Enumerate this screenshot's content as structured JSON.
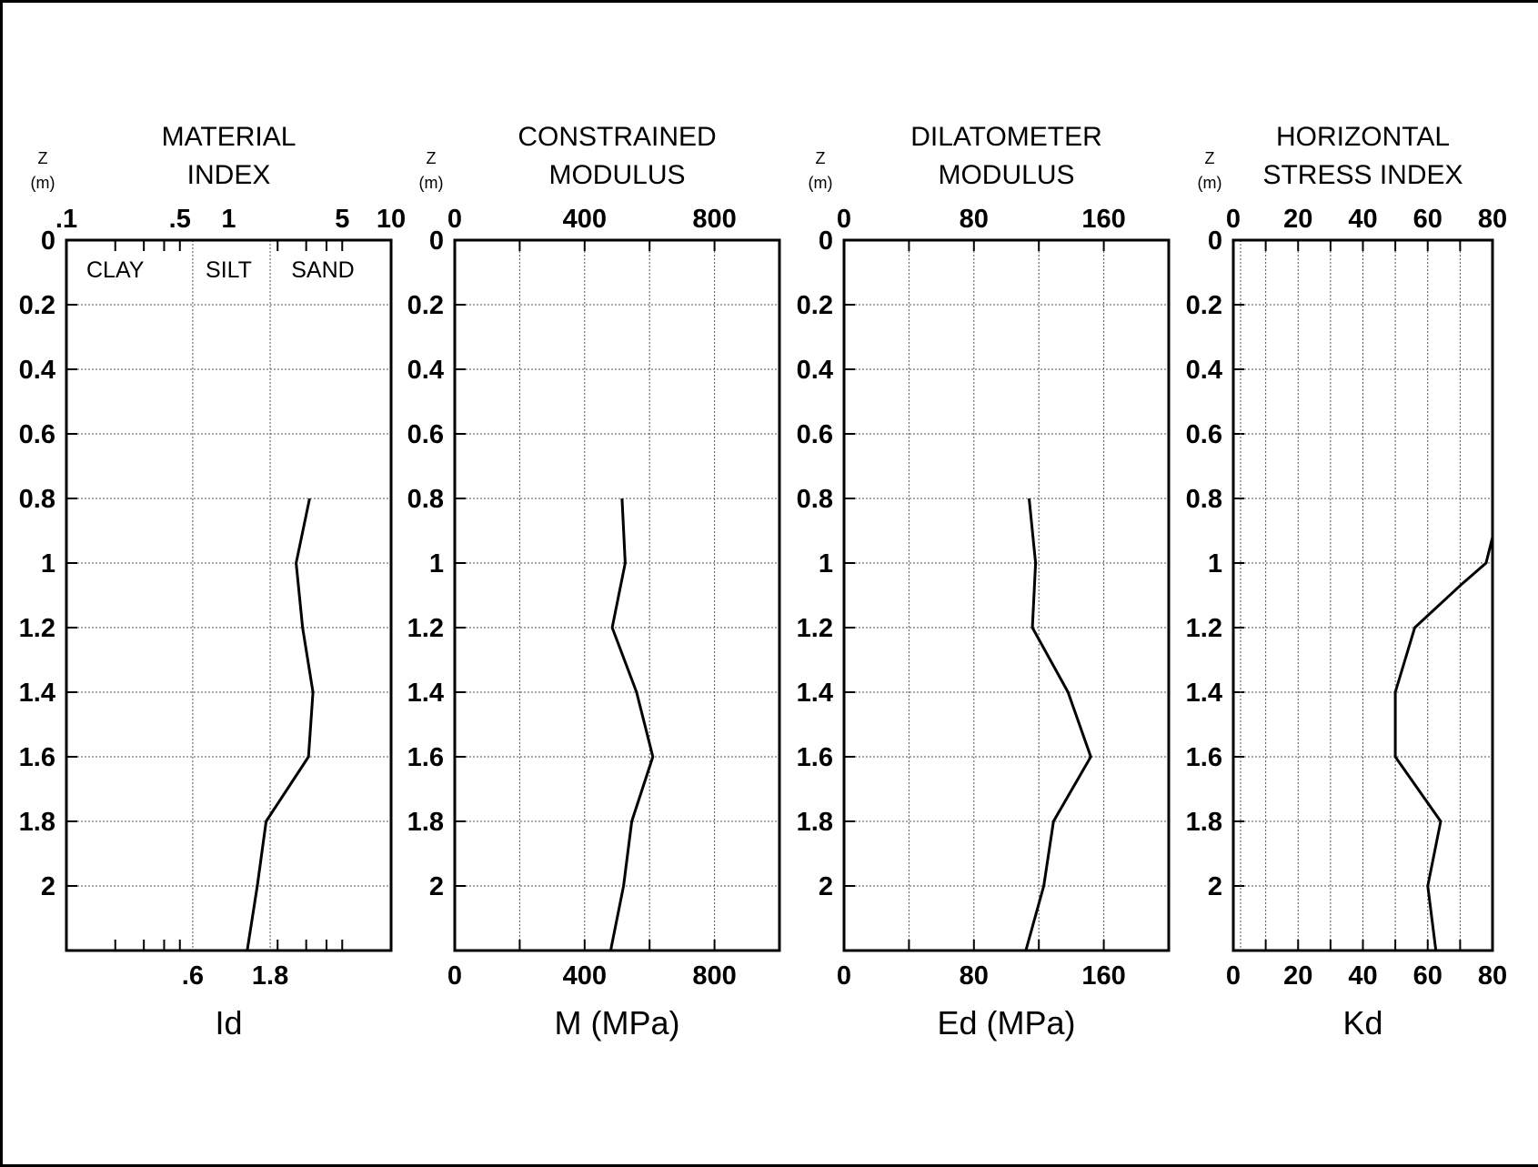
{
  "chart_data": [
    {
      "type": "line",
      "title_lines": [
        "MATERIAL",
        "INDEX"
      ],
      "xlabel": "Id",
      "ylabel_lines": [
        "Z",
        "(m)"
      ],
      "xscale": "log",
      "xlim": [
        0.1,
        10
      ],
      "ylim": [
        0,
        2.2
      ],
      "y_inverted": true,
      "grid": true,
      "top_ticks": [
        {
          "value": 0.1,
          "label": ".1"
        },
        {
          "value": 0.5,
          "label": ".5"
        },
        {
          "value": 1,
          "label": "1"
        },
        {
          "value": 5,
          "label": "5"
        },
        {
          "value": 10,
          "label": "10"
        }
      ],
      "bottom_ticks": [
        {
          "value": 0.6,
          "label": ".6"
        },
        {
          "value": 1.8,
          "label": "1.8"
        }
      ],
      "soil_labels": [
        {
          "text": "CLAY",
          "value": 0.2
        },
        {
          "text": "SILT",
          "value": 1.0
        },
        {
          "text": "SAND",
          "value": 3.8
        }
      ],
      "y_ticks": [
        {
          "value": 0,
          "label": "0"
        },
        {
          "value": 0.2,
          "label": "0.2"
        },
        {
          "value": 0.4,
          "label": "0.4"
        },
        {
          "value": 0.6,
          "label": "0.6"
        },
        {
          "value": 0.8,
          "label": "0.8"
        },
        {
          "value": 1.0,
          "label": "1"
        },
        {
          "value": 1.2,
          "label": "1.2"
        },
        {
          "value": 1.4,
          "label": "1.4"
        },
        {
          "value": 1.6,
          "label": "1.6"
        },
        {
          "value": 1.8,
          "label": "1.8"
        },
        {
          "value": 2.0,
          "label": "2"
        }
      ],
      "series": [
        {
          "x": [
            3.15,
            2.6,
            2.85,
            3.3,
            3.1,
            1.7,
            1.5,
            1.3
          ],
          "y": [
            0.8,
            1.0,
            1.2,
            1.4,
            1.6,
            1.8,
            2.0,
            2.2
          ]
        }
      ]
    },
    {
      "type": "line",
      "title_lines": [
        "CONSTRAINED",
        "MODULUS"
      ],
      "xlabel": "M (MPa)",
      "ylabel_lines": [
        "Z",
        "(m)"
      ],
      "xscale": "linear",
      "xlim": [
        0,
        1000
      ],
      "ylim": [
        0,
        2.2
      ],
      "y_inverted": true,
      "grid": true,
      "top_ticks": [
        {
          "value": 0,
          "label": "0"
        },
        {
          "value": 400,
          "label": "400"
        },
        {
          "value": 800,
          "label": "800"
        }
      ],
      "bottom_ticks": [
        {
          "value": 0,
          "label": "0"
        },
        {
          "value": 400,
          "label": "400"
        },
        {
          "value": 800,
          "label": "800"
        }
      ],
      "y_ticks": [
        {
          "value": 0,
          "label": "0"
        },
        {
          "value": 0.2,
          "label": "0.2"
        },
        {
          "value": 0.4,
          "label": "0.4"
        },
        {
          "value": 0.6,
          "label": "0.6"
        },
        {
          "value": 0.8,
          "label": "0.8"
        },
        {
          "value": 1.0,
          "label": "1"
        },
        {
          "value": 1.2,
          "label": "1.2"
        },
        {
          "value": 1.4,
          "label": "1.4"
        },
        {
          "value": 1.6,
          "label": "1.6"
        },
        {
          "value": 1.8,
          "label": "1.8"
        },
        {
          "value": 2.0,
          "label": "2"
        }
      ],
      "series": [
        {
          "x": [
            515,
            525,
            485,
            560,
            610,
            545,
            520,
            480
          ],
          "y": [
            0.8,
            1.0,
            1.2,
            1.4,
            1.6,
            1.8,
            2.0,
            2.2
          ]
        }
      ]
    },
    {
      "type": "line",
      "title_lines": [
        "DILATOMETER",
        "MODULUS"
      ],
      "xlabel": "Ed (MPa)",
      "ylabel_lines": [
        "Z",
        "(m)"
      ],
      "xscale": "linear",
      "xlim": [
        0,
        200
      ],
      "ylim": [
        0,
        2.2
      ],
      "y_inverted": true,
      "grid": true,
      "top_ticks": [
        {
          "value": 0,
          "label": "0"
        },
        {
          "value": 80,
          "label": "80"
        },
        {
          "value": 160,
          "label": "160"
        }
      ],
      "bottom_ticks": [
        {
          "value": 0,
          "label": "0"
        },
        {
          "value": 80,
          "label": "80"
        },
        {
          "value": 160,
          "label": "160"
        }
      ],
      "y_ticks": [
        {
          "value": 0,
          "label": "0"
        },
        {
          "value": 0.2,
          "label": "0.2"
        },
        {
          "value": 0.4,
          "label": "0.4"
        },
        {
          "value": 0.6,
          "label": "0.6"
        },
        {
          "value": 0.8,
          "label": "0.8"
        },
        {
          "value": 1.0,
          "label": "1"
        },
        {
          "value": 1.2,
          "label": "1.2"
        },
        {
          "value": 1.4,
          "label": "1.4"
        },
        {
          "value": 1.6,
          "label": "1.6"
        },
        {
          "value": 1.8,
          "label": "1.8"
        },
        {
          "value": 2.0,
          "label": "2"
        }
      ],
      "series": [
        {
          "x": [
            114,
            118,
            116,
            138,
            152,
            129,
            123,
            112
          ],
          "y": [
            0.8,
            1.0,
            1.2,
            1.4,
            1.6,
            1.8,
            2.0,
            2.2
          ]
        }
      ]
    },
    {
      "type": "line",
      "title_lines": [
        "HORIZONTAL",
        "STRESS INDEX"
      ],
      "xlabel": "Kd",
      "ylabel_lines": [
        "Z",
        "(m)"
      ],
      "xscale": "linear",
      "xlim": [
        0,
        80
      ],
      "ylim": [
        0,
        2.2
      ],
      "y_inverted": true,
      "grid": true,
      "top_ticks": [
        {
          "value": 0,
          "label": "0"
        },
        {
          "value": 20,
          "label": "20"
        },
        {
          "value": 40,
          "label": "40"
        },
        {
          "value": 60,
          "label": "60"
        },
        {
          "value": 80,
          "label": "80"
        }
      ],
      "bottom_ticks": [
        {
          "value": 0,
          "label": "0"
        },
        {
          "value": 20,
          "label": "20"
        },
        {
          "value": 40,
          "label": "40"
        },
        {
          "value": 60,
          "label": "60"
        },
        {
          "value": 80,
          "label": "80"
        }
      ],
      "y_ticks": [
        {
          "value": 0,
          "label": "0"
        },
        {
          "value": 0.2,
          "label": "0.2"
        },
        {
          "value": 0.4,
          "label": "0.4"
        },
        {
          "value": 0.6,
          "label": "0.6"
        },
        {
          "value": 0.8,
          "label": "0.8"
        },
        {
          "value": 1.0,
          "label": "1"
        },
        {
          "value": 1.2,
          "label": "1.2"
        },
        {
          "value": 1.4,
          "label": "1.4"
        },
        {
          "value": 1.6,
          "label": "1.6"
        },
        {
          "value": 1.8,
          "label": "1.8"
        },
        {
          "value": 2.0,
          "label": "2"
        }
      ],
      "series": [
        {
          "x": [
            80,
            78,
            70,
            56,
            50,
            50,
            64,
            60,
            62.5
          ],
          "y": [
            0.92,
            1.0,
            1.07,
            1.2,
            1.4,
            1.6,
            1.8,
            2.0,
            2.2
          ]
        }
      ]
    }
  ]
}
